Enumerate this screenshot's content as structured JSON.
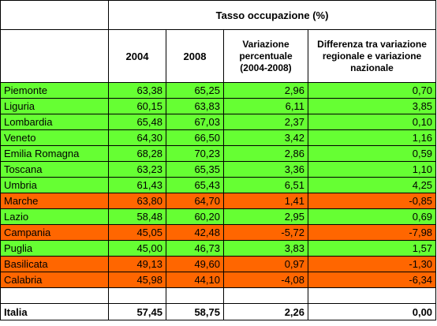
{
  "table": {
    "super_header": "Tasso occupazione (%)",
    "columns": [
      "2004",
      "2008",
      "Variazione percentuale (2004-2008)",
      "Differenza tra variazione regionale e variazione nazionale"
    ],
    "colors": {
      "above": "#66ff33",
      "below": "#ff6600"
    },
    "rows": [
      {
        "region": "Piemonte",
        "y2004": "63,38",
        "y2008": "65,25",
        "variation": "2,96",
        "difference": "0,70",
        "status": "above"
      },
      {
        "region": "Liguria",
        "y2004": "60,15",
        "y2008": "63,83",
        "variation": "6,11",
        "difference": "3,85",
        "status": "above"
      },
      {
        "region": "Lombardia",
        "y2004": "65,48",
        "y2008": "67,03",
        "variation": "2,37",
        "difference": "0,10",
        "status": "above"
      },
      {
        "region": "Veneto",
        "y2004": "64,30",
        "y2008": "66,50",
        "variation": "3,42",
        "difference": "1,16",
        "status": "above"
      },
      {
        "region": "Emilia Romagna",
        "y2004": "68,28",
        "y2008": "70,23",
        "variation": "2,86",
        "difference": "0,59",
        "status": "above"
      },
      {
        "region": "Toscana",
        "y2004": "63,23",
        "y2008": "65,35",
        "variation": "3,36",
        "difference": "1,10",
        "status": "above"
      },
      {
        "region": "Umbria",
        "y2004": "61,43",
        "y2008": "65,43",
        "variation": "6,51",
        "difference": "4,25",
        "status": "above"
      },
      {
        "region": "Marche",
        "y2004": "63,80",
        "y2008": "64,70",
        "variation": "1,41",
        "difference": "-0,85",
        "status": "below"
      },
      {
        "region": "Lazio",
        "y2004": "58,48",
        "y2008": "60,20",
        "variation": "2,95",
        "difference": "0,69",
        "status": "above"
      },
      {
        "region": "Campania",
        "y2004": "45,05",
        "y2008": "42,48",
        "variation": "-5,72",
        "difference": "-7,98",
        "status": "below"
      },
      {
        "region": "Puglia",
        "y2004": "45,00",
        "y2008": "46,73",
        "variation": "3,83",
        "difference": "1,57",
        "status": "above"
      },
      {
        "region": "Basilicata",
        "y2004": "49,13",
        "y2008": "49,60",
        "variation": "0,97",
        "difference": "-1,30",
        "status": "below"
      },
      {
        "region": "Calabria",
        "y2004": "45,98",
        "y2008": "44,10",
        "variation": "-4,08",
        "difference": "-6,34",
        "status": "below"
      }
    ],
    "total": {
      "region": "Italia",
      "y2004": "57,45",
      "y2008": "58,75",
      "variation": "2,26",
      "difference": "0,00"
    }
  }
}
